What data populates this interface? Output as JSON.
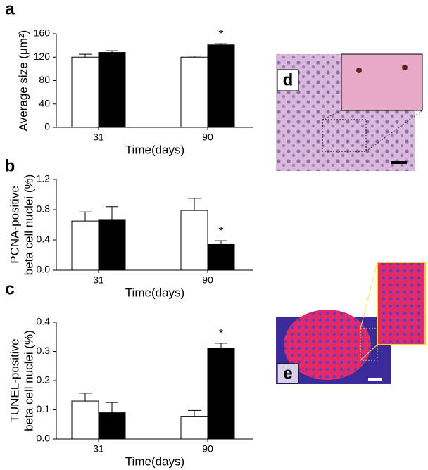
{
  "chart_data": [
    {
      "type": "bar",
      "panel": "a",
      "ylabel": [
        "Average size (μm²)"
      ],
      "xlabel": "Time(days)",
      "categories": [
        "31",
        "90"
      ],
      "series": [
        {
          "color": "#ffffff",
          "values": [
            120,
            120
          ],
          "errors": [
            5,
            2
          ],
          "significance": [
            null,
            null
          ]
        },
        {
          "color": "#000000",
          "values": [
            128,
            141
          ],
          "errors": [
            3,
            2
          ],
          "significance": [
            null,
            "*"
          ]
        }
      ],
      "ylim": [
        0,
        160
      ],
      "yticks": [
        0,
        40,
        80,
        120,
        160
      ]
    },
    {
      "type": "bar",
      "panel": "b",
      "ylabel": [
        "PCNA-positive",
        "beta cell nuclei (%)"
      ],
      "xlabel": "Time(days)",
      "categories": [
        "31",
        "90"
      ],
      "series": [
        {
          "color": "#ffffff",
          "values": [
            0.65,
            0.79
          ],
          "errors": [
            0.12,
            0.16
          ],
          "significance": [
            null,
            null
          ]
        },
        {
          "color": "#000000",
          "values": [
            0.67,
            0.34
          ],
          "errors": [
            0.17,
            0.05
          ],
          "significance": [
            null,
            "*"
          ]
        }
      ],
      "ylim": [
        0,
        1.2
      ],
      "yticks": [
        {
          "value": 0,
          "label": "0.0"
        },
        0.4,
        0.8,
        1.2
      ]
    },
    {
      "type": "bar",
      "panel": "c",
      "ylabel": [
        "TUNEL-positive",
        "beta cell nuclei (%)"
      ],
      "xlabel": "Time(days)",
      "categories": [
        "31",
        "90"
      ],
      "series": [
        {
          "color": "#ffffff",
          "values": [
            0.13,
            0.078
          ],
          "errors": [
            0.027,
            0.02
          ],
          "significance": [
            null,
            null
          ]
        },
        {
          "color": "#000000",
          "values": [
            0.09,
            0.31
          ],
          "errors": [
            0.035,
            0.018
          ],
          "significance": [
            null,
            "*"
          ]
        }
      ],
      "ylim": [
        0,
        0.4
      ],
      "yticks": [
        {
          "value": 0,
          "label": "0.0"
        },
        0.1,
        0.2,
        0.3,
        0.4
      ]
    }
  ],
  "images": [
    {
      "label": "d"
    },
    {
      "label": "e"
    }
  ]
}
